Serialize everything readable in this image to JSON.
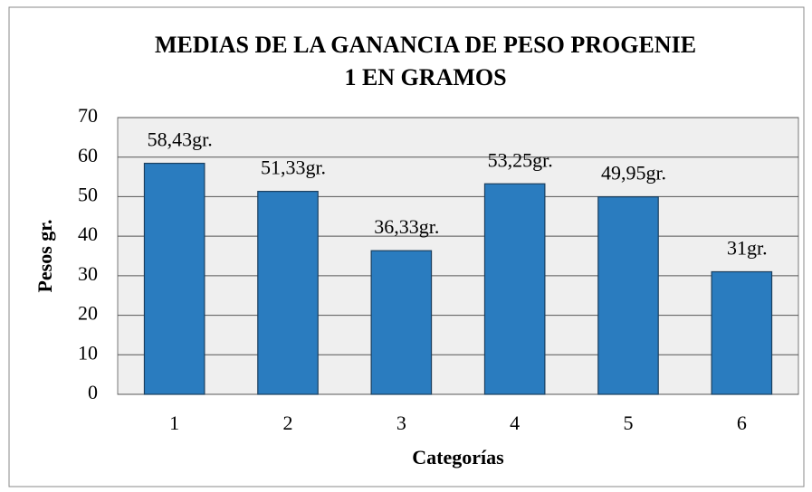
{
  "chart_data": {
    "type": "bar",
    "title": [
      "MEDIAS DE LA GANANCIA DE PESO PROGENIE",
      "1 EN GRAMOS"
    ],
    "x_label": "Categorías",
    "y_label": "Pesos gr.",
    "categories": [
      "1",
      "2",
      "3",
      "4",
      "5",
      "6"
    ],
    "values": [
      58.43,
      51.33,
      36.33,
      53.25,
      49.95,
      31
    ],
    "value_labels": [
      "58,43gr.",
      "51,33gr.",
      "36,33gr.",
      "53,25gr.",
      "49,95gr.",
      "31gr."
    ],
    "color": "#2a7cbf",
    "ylim": [
      0,
      70
    ],
    "yticks": [
      0,
      10,
      20,
      30,
      40,
      50,
      60,
      70
    ],
    "grid": true
  }
}
